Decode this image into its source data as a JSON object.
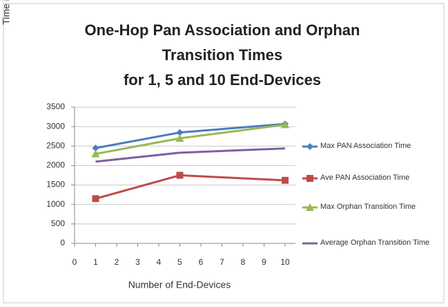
{
  "chart_data": {
    "type": "line",
    "title": [
      "One-Hop Pan Association and Orphan",
      "Transition Times",
      "for 1, 5 and 10 End-Devices"
    ],
    "x_label": "Number of End-Devices",
    "y_label": "Time in Milliseconds",
    "x": [
      1,
      5,
      10
    ],
    "xlim": [
      0,
      10
    ],
    "xticks": [
      0,
      1,
      2,
      3,
      4,
      5,
      6,
      7,
      8,
      9,
      10
    ],
    "ylim": [
      0,
      3500
    ],
    "yticks": [
      0,
      500,
      1000,
      1500,
      2000,
      2500,
      3000,
      3500
    ],
    "grid": true,
    "legend": "right",
    "series": [
      {
        "name": "Max PAN Association Time",
        "color": "#4a7ebb",
        "marker": "diamond",
        "values": [
          2450,
          2850,
          3070
        ]
      },
      {
        "name": "Ave PAN Association Time",
        "color": "#be4b48",
        "marker": "square",
        "values": [
          1150,
          1750,
          1620
        ]
      },
      {
        "name": "Max Orphan Transition Time",
        "color": "#98b954",
        "marker": "triangle",
        "values": [
          2300,
          2700,
          3050
        ]
      },
      {
        "name": "Average Orphan Transition Time",
        "color": "#7d60a0",
        "marker": "none",
        "values": [
          2100,
          2330,
          2440
        ]
      }
    ]
  }
}
